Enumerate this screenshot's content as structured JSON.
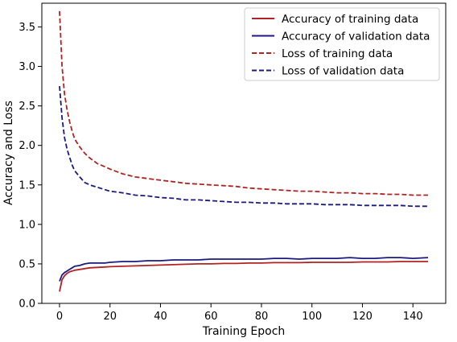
{
  "chart_data": {
    "type": "line",
    "xlabel": "Training Epoch",
    "ylabel": "Accuracy and Loss",
    "xlim": [
      -7,
      153
    ],
    "ylim": [
      0.0,
      3.8
    ],
    "xticks": [
      0,
      20,
      40,
      60,
      80,
      100,
      120,
      140
    ],
    "yticks": [
      0.0,
      0.5,
      1.0,
      1.5,
      2.0,
      2.5,
      3.0,
      3.5
    ],
    "xtick_labels": [
      "0",
      "20",
      "40",
      "60",
      "80",
      "100",
      "120",
      "140"
    ],
    "ytick_labels": [
      "0.0",
      "0.5",
      "1.0",
      "1.5",
      "2.0",
      "2.5",
      "3.0",
      "3.5"
    ],
    "legend_position": "top-right",
    "grid": false,
    "x": [
      0,
      1,
      2,
      3,
      4,
      5,
      6,
      8,
      10,
      12,
      15,
      18,
      20,
      25,
      30,
      35,
      40,
      45,
      50,
      55,
      60,
      65,
      70,
      75,
      80,
      85,
      90,
      95,
      100,
      105,
      110,
      115,
      120,
      125,
      130,
      135,
      140,
      146
    ],
    "series": [
      {
        "name": "Accuracy of training data",
        "color": "#b22222",
        "dash": "solid",
        "values": [
          0.15,
          0.3,
          0.35,
          0.38,
          0.4,
          0.41,
          0.42,
          0.43,
          0.44,
          0.45,
          0.455,
          0.46,
          0.465,
          0.47,
          0.475,
          0.48,
          0.485,
          0.49,
          0.495,
          0.5,
          0.5,
          0.505,
          0.505,
          0.51,
          0.51,
          0.515,
          0.515,
          0.515,
          0.52,
          0.52,
          0.52,
          0.52,
          0.525,
          0.525,
          0.525,
          0.53,
          0.53,
          0.53
        ]
      },
      {
        "name": "Accuracy of validation data",
        "color": "#1a1a80",
        "dash": "solid",
        "values": [
          0.28,
          0.36,
          0.39,
          0.41,
          0.43,
          0.45,
          0.47,
          0.48,
          0.5,
          0.51,
          0.51,
          0.51,
          0.52,
          0.53,
          0.53,
          0.54,
          0.54,
          0.55,
          0.55,
          0.55,
          0.56,
          0.56,
          0.56,
          0.56,
          0.56,
          0.57,
          0.57,
          0.56,
          0.57,
          0.57,
          0.57,
          0.58,
          0.57,
          0.57,
          0.58,
          0.58,
          0.57,
          0.58
        ]
      },
      {
        "name": "Loss of training data",
        "color": "#b22222",
        "dash": "dashed",
        "values": [
          3.7,
          3.0,
          2.65,
          2.45,
          2.3,
          2.18,
          2.08,
          1.98,
          1.9,
          1.84,
          1.77,
          1.73,
          1.7,
          1.64,
          1.6,
          1.58,
          1.56,
          1.54,
          1.52,
          1.51,
          1.5,
          1.49,
          1.48,
          1.46,
          1.45,
          1.44,
          1.43,
          1.42,
          1.42,
          1.41,
          1.4,
          1.4,
          1.39,
          1.39,
          1.38,
          1.38,
          1.37,
          1.37
        ]
      },
      {
        "name": "Loss of validation data",
        "color": "#1a1a80",
        "dash": "dashed",
        "values": [
          2.75,
          2.35,
          2.1,
          1.95,
          1.85,
          1.75,
          1.68,
          1.6,
          1.53,
          1.5,
          1.47,
          1.44,
          1.42,
          1.4,
          1.37,
          1.36,
          1.34,
          1.33,
          1.31,
          1.31,
          1.3,
          1.29,
          1.28,
          1.28,
          1.27,
          1.27,
          1.26,
          1.26,
          1.26,
          1.25,
          1.25,
          1.25,
          1.24,
          1.24,
          1.24,
          1.24,
          1.23,
          1.23
        ]
      }
    ]
  }
}
